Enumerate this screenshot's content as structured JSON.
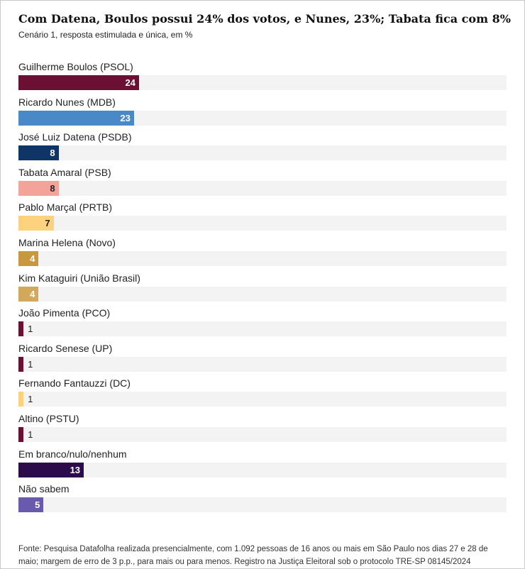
{
  "chart_data": {
    "type": "bar",
    "orientation": "horizontal",
    "title": "Com Datena, Boulos possui 24% dos votos, e Nunes, 23%; Tabata fica com 8%",
    "subtitle": "Cenário 1, resposta estimulada e única, em %",
    "xlim": [
      0,
      100
    ],
    "grid": false,
    "categories": [
      "Guilherme Boulos (PSOL)",
      "Ricardo Nunes (MDB)",
      "José Luiz Datena (PSDB)",
      "Tabata Amaral (PSB)",
      "Pablo Marçal (PRTB)",
      "Marina Helena (Novo)",
      "Kim Kataguiri (União Brasil)",
      "João Pimenta (PCO)",
      "Ricardo Senese (UP)",
      "Fernando Fantauzzi (DC)",
      "Altino (PSTU)",
      "Em branco/nulo/nenhum",
      "Não sabem"
    ],
    "values": [
      24,
      23,
      8,
      8,
      7,
      4,
      4,
      1,
      1,
      1,
      1,
      13,
      5
    ],
    "colors": [
      "#6b0f33",
      "#4a89c8",
      "#0e3566",
      "#f4a39a",
      "#fdd27e",
      "#c9973d",
      "#d2a85c",
      "#6b0f33",
      "#6b0f33",
      "#fdd27e",
      "#6b0f33",
      "#2c0b4d",
      "#6a5aad"
    ],
    "label_colors": [
      "#ffffff",
      "#ffffff",
      "#ffffff",
      "#222222",
      "#222222",
      "#ffffff",
      "#ffffff",
      "#222222",
      "#222222",
      "#222222",
      "#222222",
      "#ffffff",
      "#ffffff"
    ]
  },
  "source": "Fonte: Pesquisa Datafolha realizada presencialmente, com 1.092 pessoas de 16 anos ou mais em São Paulo nos dias 27 e 28 de maio; margem de erro de 3 p.p., para mais ou para menos. Registro na Justiça Eleitoral sob o protocolo TRE-SP 08145/2024"
}
